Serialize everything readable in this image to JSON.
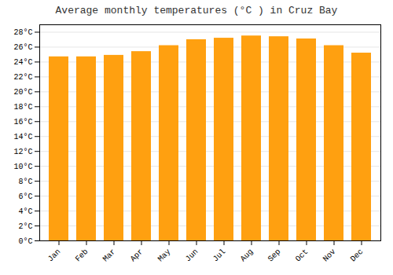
{
  "chart_data": {
    "type": "bar",
    "title": "Average monthly temperatures (°C ) in Cruz Bay",
    "categories": [
      "Jan",
      "Feb",
      "Mar",
      "Apr",
      "May",
      "Jun",
      "Jul",
      "Aug",
      "Sep",
      "Oct",
      "Nov",
      "Dec"
    ],
    "values": [
      24.7,
      24.7,
      24.9,
      25.4,
      26.2,
      27.0,
      27.2,
      27.5,
      27.4,
      27.1,
      26.2,
      25.2
    ],
    "color": "#FFA010",
    "ylim": [
      0,
      29
    ],
    "yticks": [
      {
        "value": 0,
        "label": "0°C"
      },
      {
        "value": 2,
        "label": "2°C"
      },
      {
        "value": 4,
        "label": "4°C"
      },
      {
        "value": 6,
        "label": "6°C"
      },
      {
        "value": 8,
        "label": "8°C"
      },
      {
        "value": 10,
        "label": "10°C"
      },
      {
        "value": 12,
        "label": "12°C"
      },
      {
        "value": 14,
        "label": "14°C"
      },
      {
        "value": 16,
        "label": "16°C"
      },
      {
        "value": 18,
        "label": "18°C"
      },
      {
        "value": 20,
        "label": "20°C"
      },
      {
        "value": 22,
        "label": "22°C"
      },
      {
        "value": 24,
        "label": "24°C"
      },
      {
        "value": 26,
        "label": "26°C"
      },
      {
        "value": 28,
        "label": "28°C"
      }
    ],
    "grid": true
  }
}
